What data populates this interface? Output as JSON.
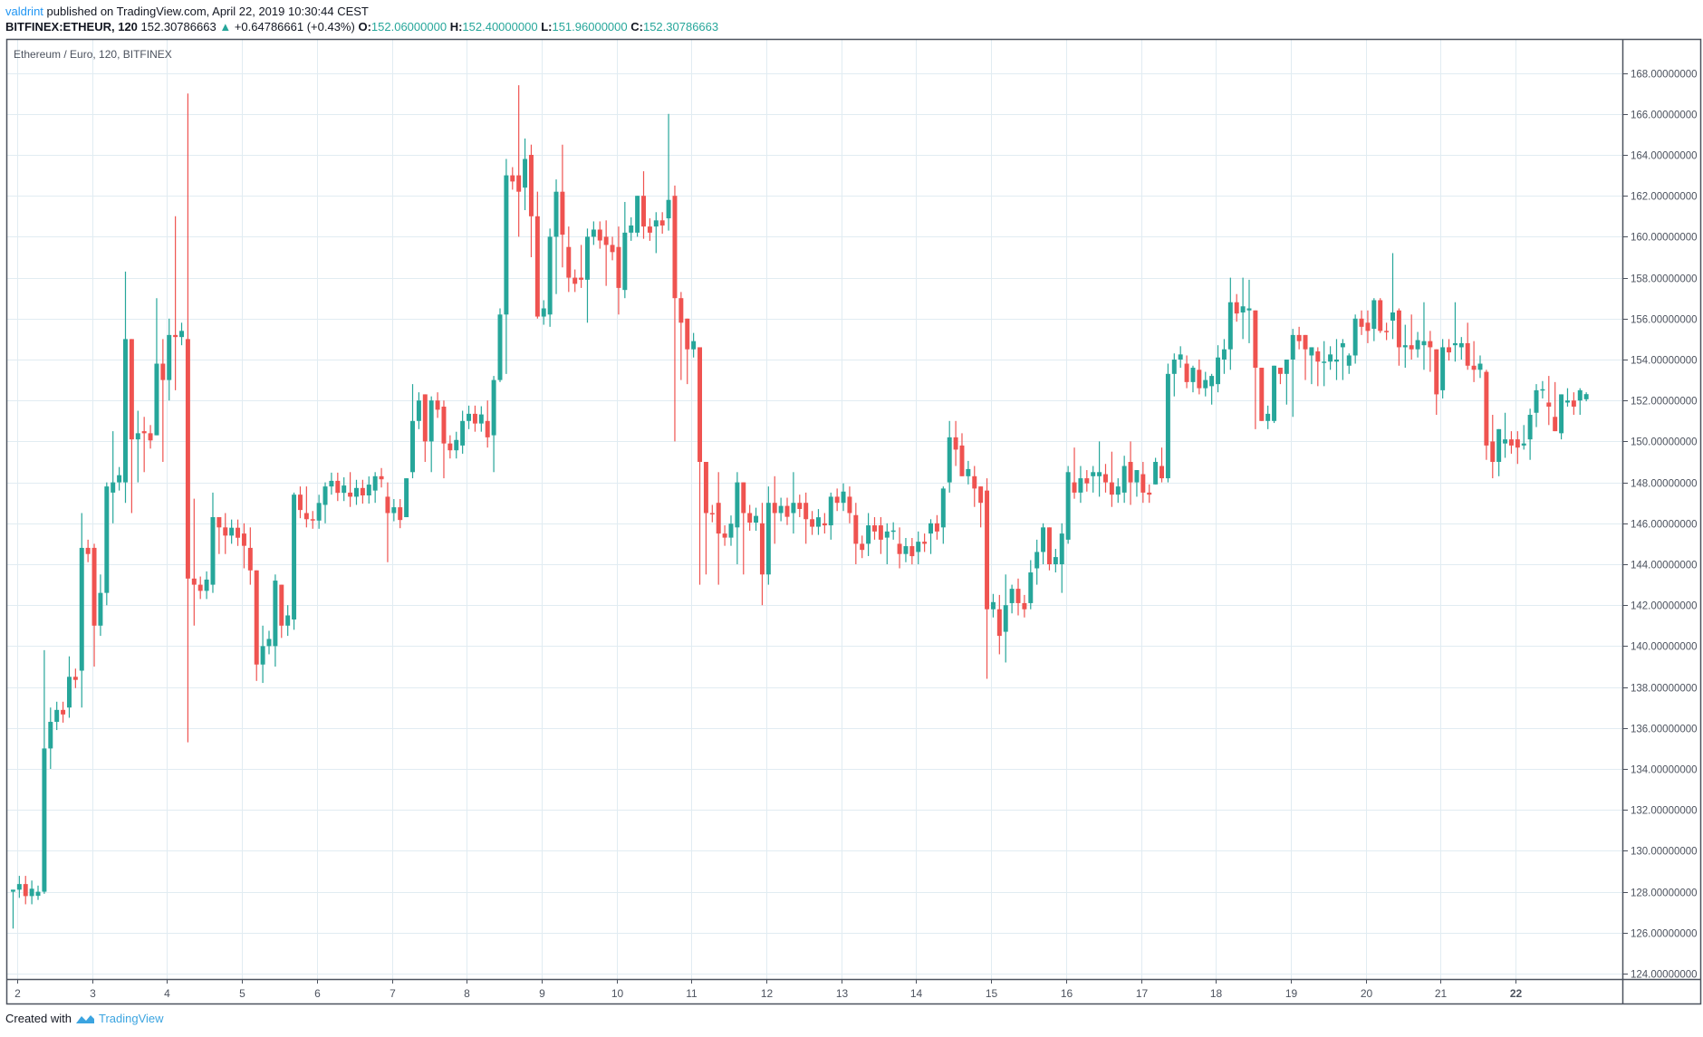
{
  "header": {
    "publisher": "valdrint",
    "published_text": "published on TradingView.com, April 22, 2019 10:30:44 CEST",
    "symbol": "BITFINEX:ETHEUR, 120",
    "last_price": "152.30786663",
    "change": "+0.64786661 (+0.43%)",
    "ohlc": {
      "o_label": "O:",
      "o": "152.06000000",
      "h_label": "H:",
      "h": "152.40000000",
      "l_label": "L:",
      "l": "151.96000000",
      "c_label": "C:",
      "c": "152.30786663"
    }
  },
  "footer": {
    "created_with": "Created with",
    "brand": "TradingView"
  },
  "colors": {
    "up": "#26a69a",
    "down": "#ef5350",
    "grid": "#e1ecf2",
    "axis": "#4c525e",
    "text": "#4c525e"
  },
  "chart_data": {
    "type": "candlestick",
    "title": "Ethereum / Euro, 120, BITFINEX",
    "xlabel": "",
    "ylabel": "",
    "ylim": [
      123.3,
      169.5
    ],
    "y_ticks": [
      124,
      126,
      128,
      130,
      132,
      134,
      136,
      138,
      140,
      142,
      144,
      146,
      148,
      150,
      152,
      154,
      156,
      158,
      160,
      162,
      164,
      166,
      168
    ],
    "y_tick_labels": [
      "124.00000000",
      "126.00000000",
      "128.00000000",
      "130.00000000",
      "132.00000000",
      "134.00000000",
      "136.00000000",
      "138.00000000",
      "140.00000000",
      "142.00000000",
      "144.00000000",
      "146.00000000",
      "148.00000000",
      "150.00000000",
      "152.00000000",
      "154.00000000",
      "156.00000000",
      "158.00000000",
      "160.00000000",
      "162.00000000",
      "164.00000000",
      "166.00000000",
      "168.00000000"
    ],
    "x_tick_labels": [
      "2",
      "3",
      "4",
      "5",
      "6",
      "7",
      "8",
      "9",
      "10",
      "11",
      "12",
      "13",
      "14",
      "15",
      "16",
      "17",
      "18",
      "19",
      "20",
      "21",
      "22"
    ],
    "grid": true,
    "candles_per_day": 12,
    "anchors": [
      [
        0,
        128.0,
        127.0,
        126.2,
        128.1
      ],
      [
        3,
        127.8,
        128.3,
        127.6,
        128.0
      ],
      [
        4,
        128.0,
        139.8,
        127.9,
        135.0
      ],
      [
        5,
        135.0,
        137.0,
        134.0,
        136.3
      ],
      [
        7,
        137.0,
        139.5,
        136.5,
        138.5
      ],
      [
        9,
        138.8,
        146.5,
        137.0,
        144.8
      ],
      [
        10,
        144.8,
        145.0,
        139.0,
        141.0
      ],
      [
        11,
        141.0,
        143.5,
        140.5,
        142.6
      ],
      [
        12,
        142.6,
        148.0,
        142.0,
        147.8
      ],
      [
        13,
        147.5,
        150.5,
        146.0,
        148.0
      ],
      [
        14,
        148.0,
        158.3,
        147.0,
        155.0
      ],
      [
        15,
        155.0,
        153.7,
        146.5,
        150.1
      ],
      [
        16,
        150.1,
        151.5,
        148.0,
        150.4
      ],
      [
        17,
        150.5,
        151.2,
        148.5,
        150.4
      ],
      [
        18,
        150.3,
        157.0,
        150.3,
        153.8
      ],
      [
        19,
        153.8,
        155.0,
        149.0,
        153.0
      ],
      [
        20,
        153.0,
        156.0,
        152.0,
        155.2
      ],
      [
        21,
        155.2,
        161.0,
        152.5,
        155.1
      ],
      [
        22,
        155.0,
        167.0,
        135.3,
        143.3
      ],
      [
        23,
        143.3,
        147.2,
        141.0,
        143.0
      ],
      [
        25,
        143.0,
        147.5,
        142.6,
        146.3
      ],
      [
        26,
        146.3,
        145.5,
        144.5,
        145.8
      ],
      [
        27,
        145.8,
        146.5,
        144.5,
        145.4
      ],
      [
        29,
        145.5,
        146.0,
        143.8,
        144.9
      ],
      [
        30,
        144.8,
        145.8,
        143.0,
        143.7
      ],
      [
        31,
        143.7,
        143.0,
        138.3,
        139.1
      ],
      [
        32,
        139.1,
        141.0,
        138.2,
        140.0
      ],
      [
        33,
        140.0,
        143.5,
        139.0,
        143.2
      ],
      [
        34,
        143.0,
        142.7,
        140.4,
        141.0
      ],
      [
        35,
        141.0,
        142.0,
        140.5,
        141.5
      ],
      [
        36,
        141.3,
        147.5,
        140.8,
        147.4
      ],
      [
        37,
        146.5,
        147.8,
        145.8,
        146.2
      ],
      [
        40,
        146.9,
        148.0,
        146.0,
        147.8
      ],
      [
        43,
        147.5,
        148.5,
        146.8,
        147.3
      ],
      [
        46,
        147.6,
        148.5,
        147.0,
        148.3
      ],
      [
        48,
        147.3,
        148.0,
        144.1,
        146.5
      ],
      [
        50,
        146.3,
        148.0,
        146.3,
        148.2
      ],
      [
        51,
        148.5,
        152.8,
        148.2,
        151.0
      ],
      [
        52,
        152.3,
        151.6,
        149.0,
        150.0
      ],
      [
        53,
        150.0,
        152.2,
        148.5,
        152.0
      ],
      [
        55,
        151.7,
        152.0,
        148.2,
        149.9
      ],
      [
        57,
        149.8,
        151.5,
        149.4,
        151.0
      ],
      [
        60,
        151.0,
        152.0,
        149.7,
        150.2
      ],
      [
        61,
        150.3,
        153.2,
        148.5,
        153.0
      ],
      [
        62,
        153.0,
        156.5,
        152.9,
        156.2
      ],
      [
        63,
        156.2,
        163.8,
        153.3,
        163.0
      ],
      [
        64,
        163.0,
        167.4,
        160.0,
        162.2
      ],
      [
        65,
        162.4,
        164.8,
        161.3,
        163.8
      ],
      [
        66,
        164.0,
        164.5,
        159.0,
        161.0
      ],
      [
        67,
        161.0,
        162.2,
        156.0,
        156.1
      ],
      [
        68,
        156.2,
        160.4,
        155.6,
        160.0
      ],
      [
        69,
        160.0,
        162.8,
        157.2,
        162.2
      ],
      [
        70,
        162.2,
        164.5,
        158.5,
        160.1
      ],
      [
        71,
        159.5,
        160.5,
        157.3,
        158.0
      ],
      [
        72,
        158.0,
        159.6,
        157.5,
        157.9
      ],
      [
        73,
        157.9,
        160.4,
        155.8,
        160.0
      ],
      [
        75,
        160.0,
        160.8,
        157.6,
        159.6
      ],
      [
        77,
        159.5,
        160.5,
        156.2,
        157.5
      ],
      [
        78,
        157.4,
        161.7,
        157.0,
        160.2
      ],
      [
        79,
        160.2,
        162.0,
        160.0,
        162.0
      ],
      [
        80,
        162.0,
        163.2,
        159.9,
        160.5
      ],
      [
        82,
        160.5,
        161.2,
        159.2,
        160.8
      ],
      [
        83,
        160.9,
        166.0,
        160.3,
        161.8
      ],
      [
        84,
        162.0,
        162.5,
        150.0,
        157.0
      ],
      [
        85,
        157.0,
        157.3,
        153.0,
        155.8
      ],
      [
        86,
        156.0,
        156.0,
        152.8,
        154.5
      ],
      [
        87,
        154.6,
        154.0,
        143.0,
        149.0
      ],
      [
        88,
        149.0,
        148.0,
        143.5,
        146.5
      ],
      [
        90,
        147.0,
        148.5,
        143.0,
        145.5
      ],
      [
        92,
        145.8,
        148.5,
        144.0,
        148.0
      ],
      [
        93,
        148.0,
        148.0,
        143.5,
        146.5
      ],
      [
        95,
        146.0,
        147.0,
        142.0,
        143.5
      ],
      [
        96,
        143.5,
        147.8,
        143.0,
        147.0
      ],
      [
        97,
        147.0,
        148.3,
        145.0,
        146.5
      ],
      [
        99,
        146.5,
        148.5,
        145.5,
        147.0
      ],
      [
        101,
        147.0,
        147.5,
        145.0,
        146.2
      ],
      [
        103,
        146.0,
        146.5,
        145.5,
        145.9
      ],
      [
        104,
        145.9,
        147.5,
        145.2,
        147.3
      ],
      [
        106,
        147.3,
        147.8,
        146.0,
        146.5
      ],
      [
        107,
        146.4,
        147.0,
        144.0,
        145.0
      ],
      [
        109,
        145.0,
        146.5,
        144.4,
        145.9
      ],
      [
        110,
        145.9,
        146.3,
        144.5,
        145.2
      ],
      [
        111,
        145.3,
        146.0,
        144.0,
        145.6
      ],
      [
        113,
        145.0,
        145.8,
        143.8,
        144.5
      ],
      [
        115,
        144.6,
        145.6,
        144.0,
        145.1
      ],
      [
        117,
        145.5,
        146.2,
        144.5,
        146.0
      ],
      [
        118,
        145.8,
        147.8,
        145.0,
        147.7
      ],
      [
        119,
        148.0,
        151.0,
        147.5,
        150.2
      ],
      [
        120,
        150.2,
        151.0,
        148.8,
        149.6
      ],
      [
        121,
        149.8,
        150.4,
        148.5,
        148.3
      ],
      [
        122,
        148.3,
        148.8,
        146.8,
        147.7
      ],
      [
        123,
        147.8,
        147.6,
        145.8,
        147.0
      ],
      [
        124,
        147.6,
        148.2,
        138.4,
        141.8
      ],
      [
        125,
        141.8,
        142.5,
        139.6,
        140.5
      ],
      [
        126,
        140.7,
        143.5,
        139.2,
        142.0
      ],
      [
        127,
        142.1,
        143.0,
        141.6,
        142.8
      ],
      [
        128,
        142.8,
        143.3,
        141.5,
        142.1
      ],
      [
        129,
        142.1,
        144.2,
        141.8,
        143.6
      ],
      [
        130,
        143.8,
        145.2,
        143.0,
        144.6
      ],
      [
        131,
        144.6,
        146.0,
        144.0,
        145.8
      ],
      [
        132,
        145.8,
        145.8,
        143.7,
        144.0
      ],
      [
        133,
        144.0,
        146.0,
        142.6,
        145.5
      ],
      [
        134,
        145.2,
        148.8,
        145.0,
        148.5
      ],
      [
        135,
        148.0,
        149.7,
        147.2,
        147.5
      ],
      [
        136,
        147.5,
        148.8,
        147.0,
        148.2
      ],
      [
        137,
        148.3,
        148.8,
        147.5,
        148.5
      ],
      [
        138,
        148.3,
        150.0,
        147.3,
        148.5
      ],
      [
        139,
        148.4,
        148.9,
        147.5,
        148.0
      ],
      [
        140,
        148.0,
        149.5,
        146.8,
        147.4
      ],
      [
        141,
        147.5,
        149.3,
        147.0,
        148.8
      ],
      [
        142,
        149.0,
        150.0,
        146.9,
        148.0
      ],
      [
        143,
        148.0,
        148.5,
        147.3,
        148.6
      ],
      [
        144,
        148.4,
        149.0,
        147.0,
        147.5
      ],
      [
        145,
        147.9,
        149.2,
        148.0,
        149.0
      ],
      [
        146,
        148.8,
        149.7,
        148.0,
        148.2
      ],
      [
        147,
        148.2,
        153.8,
        148.0,
        153.3
      ],
      [
        148,
        153.3,
        154.3,
        152.2,
        154.0
      ],
      [
        149,
        153.8,
        154.2,
        152.6,
        152.9
      ],
      [
        150,
        152.9,
        153.7,
        152.4,
        153.6
      ],
      [
        151,
        153.5,
        154.0,
        152.3,
        152.6
      ],
      [
        152,
        152.7,
        153.3,
        151.8,
        153.2
      ],
      [
        153,
        152.8,
        154.7,
        152.4,
        154.1
      ],
      [
        154,
        154.0,
        155.0,
        153.3,
        154.5
      ],
      [
        155,
        154.5,
        158.0,
        153.5,
        156.8
      ],
      [
        156,
        156.3,
        158.0,
        155.0,
        156.6
      ],
      [
        157,
        156.4,
        157.9,
        154.8,
        156.5
      ],
      [
        158,
        156.4,
        156.3,
        150.6,
        153.6
      ],
      [
        159,
        153.6,
        153.0,
        151.7,
        151.0
      ],
      [
        160,
        151.0,
        153.6,
        150.9,
        153.7
      ],
      [
        161,
        153.6,
        153.5,
        152.8,
        153.3
      ],
      [
        162,
        153.3,
        154.0,
        151.8,
        154.0
      ],
      [
        163,
        154.0,
        155.5,
        151.2,
        155.2
      ],
      [
        164,
        155.2,
        155.0,
        153.0,
        154.5
      ],
      [
        165,
        154.2,
        154.6,
        152.8,
        154.6
      ],
      [
        166,
        154.4,
        154.6,
        152.7,
        153.9
      ],
      [
        167,
        153.9,
        154.9,
        152.7,
        153.9
      ],
      [
        168,
        153.9,
        155.0,
        153.0,
        154.0
      ],
      [
        169,
        154.6,
        155.0,
        153.0,
        154.8
      ],
      [
        170,
        153.7,
        154.3,
        153.3,
        154.2
      ],
      [
        171,
        154.2,
        156.2,
        153.8,
        156.0
      ],
      [
        172,
        155.8,
        156.4,
        154.8,
        155.4
      ],
      [
        173,
        155.5,
        157.0,
        154.9,
        156.9
      ],
      [
        174,
        156.9,
        157.0,
        155.3,
        155.4
      ],
      [
        175,
        155.9,
        159.2,
        155.0,
        156.3
      ],
      [
        176,
        156.4,
        156.5,
        153.7,
        154.6
      ],
      [
        177,
        154.6,
        155.7,
        153.6,
        154.7
      ],
      [
        178,
        154.7,
        156.2,
        154.0,
        154.5
      ],
      [
        179,
        154.7,
        156.8,
        153.5,
        154.9
      ],
      [
        180,
        154.9,
        155.4,
        153.4,
        154.6
      ],
      [
        181,
        154.5,
        154.3,
        151.3,
        152.3
      ],
      [
        182,
        152.5,
        155.0,
        152.1,
        154.6
      ],
      [
        183,
        154.7,
        156.8,
        153.9,
        154.8
      ],
      [
        184,
        154.6,
        155.1,
        154.0,
        154.8
      ],
      [
        185,
        154.8,
        155.8,
        153.5,
        153.7
      ],
      [
        186,
        153.7,
        154.9,
        152.9,
        153.5
      ],
      [
        187,
        153.4,
        153.5,
        149.1,
        149.8
      ],
      [
        188,
        150.0,
        151.3,
        148.2,
        149.0
      ],
      [
        189,
        149.0,
        150.5,
        148.3,
        150.6
      ],
      [
        190,
        149.9,
        151.4,
        149.2,
        150.1
      ],
      [
        191,
        150.1,
        150.5,
        148.9,
        149.7
      ],
      [
        192,
        149.8,
        150.8,
        149.6,
        149.9
      ],
      [
        193,
        150.1,
        151.6,
        149.1,
        151.3
      ],
      [
        194,
        151.4,
        152.8,
        150.7,
        152.5
      ],
      [
        195,
        151.9,
        153.2,
        150.8,
        151.7
      ],
      [
        196,
        151.2,
        152.9,
        151.0,
        150.5
      ],
      [
        197,
        150.4,
        152.2,
        150.1,
        152.3
      ],
      [
        198,
        151.9,
        152.6,
        151.7,
        152.0
      ],
      [
        199,
        152.0,
        152.6,
        151.3,
        152.5
      ],
      [
        200,
        152.06,
        152.4,
        151.96,
        152.31
      ]
    ]
  }
}
